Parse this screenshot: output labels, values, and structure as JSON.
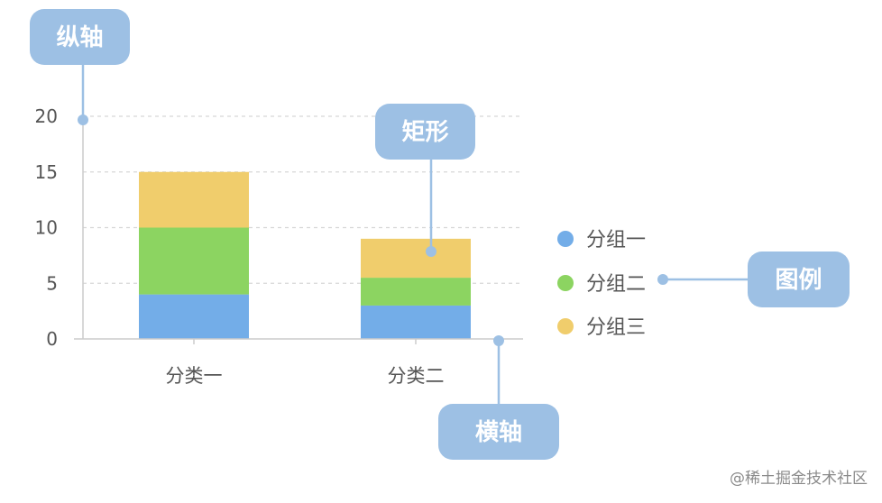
{
  "chart_data": {
    "type": "bar",
    "stacked": true,
    "categories": [
      "分类一",
      "分类二"
    ],
    "series": [
      {
        "name": "分组一",
        "values": [
          4,
          3
        ],
        "color": "#73ade8"
      },
      {
        "name": "分组二",
        "values": [
          6,
          2.5
        ],
        "color": "#8cd461"
      },
      {
        "name": "分组三",
        "values": [
          5,
          3.5
        ],
        "color": "#f0cd6c"
      }
    ],
    "ylim": [
      0,
      20
    ],
    "yticks": [
      "0",
      "5",
      "10",
      "15",
      "20"
    ],
    "grid": true,
    "legend_position": "right"
  },
  "annotations": {
    "y_axis": "纵轴",
    "rect": "矩形",
    "legend": "图例",
    "x_axis": "横轴"
  },
  "watermark": "@稀土掘金技术社区",
  "colors": {
    "callout_fill": "#9dc0e4",
    "callout_line": "#9dc0e4",
    "axis": "#cccccc",
    "grid": "#d7d7d7"
  }
}
